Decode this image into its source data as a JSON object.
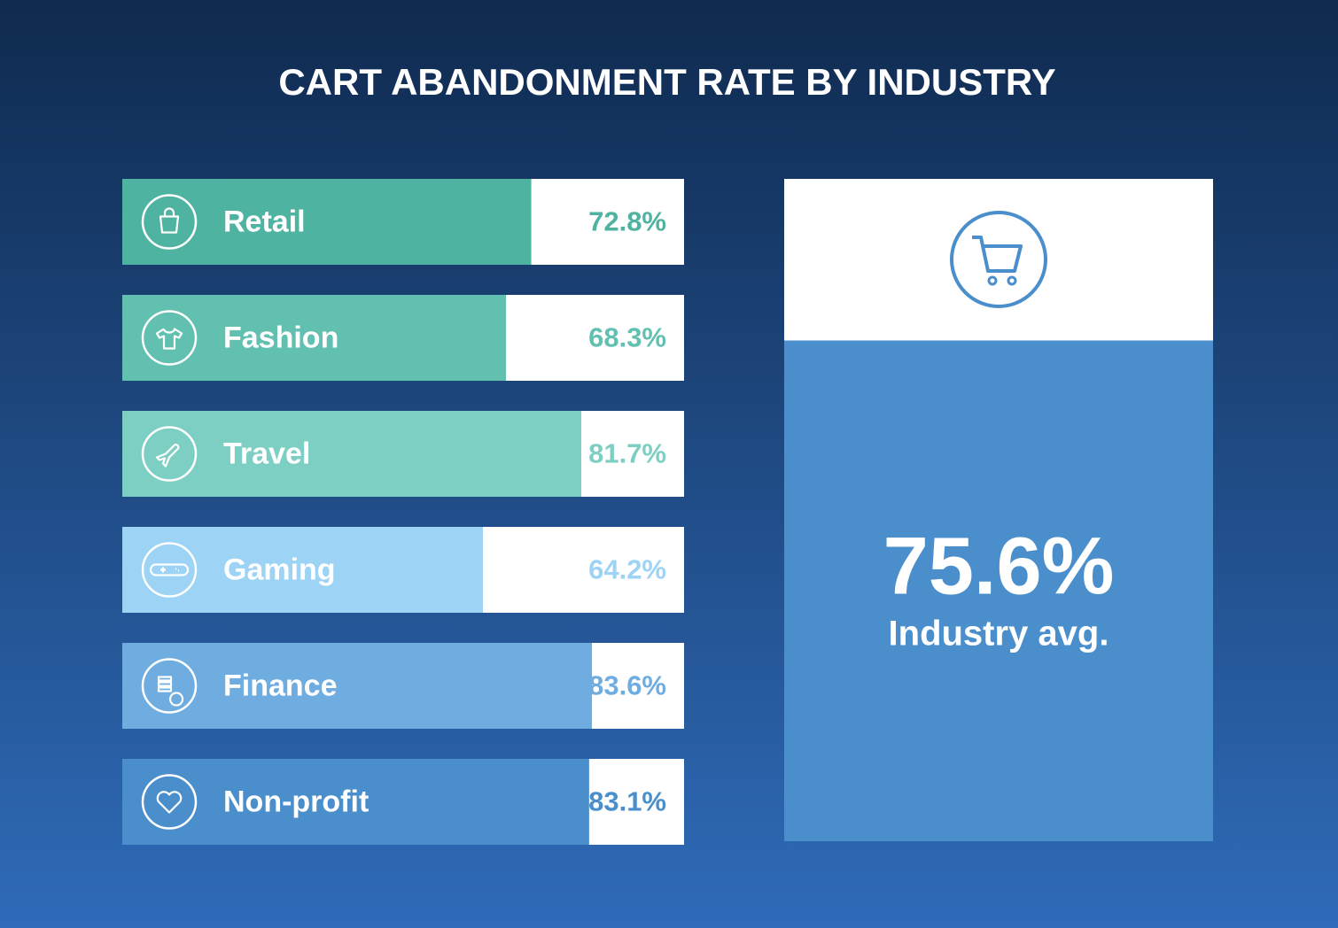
{
  "chart_data": {
    "type": "bar",
    "title": "CART ABANDONMENT RATE BY INDUSTRY",
    "categories": [
      "Retail",
      "Fashion",
      "Travel",
      "Gaming",
      "Finance",
      "Non-profit"
    ],
    "values": [
      72.8,
      68.3,
      81.7,
      64.2,
      83.6,
      83.1
    ],
    "value_labels": [
      "72.8%",
      "68.3%",
      "81.7%",
      "64.2%",
      "83.6%",
      "83.1%"
    ],
    "colors": [
      "#4fb3a2",
      "#62c0b0",
      "#7dcfc3",
      "#9dd3f5",
      "#6fade0",
      "#4a8fcc"
    ],
    "xlim": [
      0,
      100
    ],
    "average": {
      "value": 75.6,
      "label": "75.6%",
      "caption": "Industry avg.",
      "color": "#4a8fcc"
    }
  }
}
